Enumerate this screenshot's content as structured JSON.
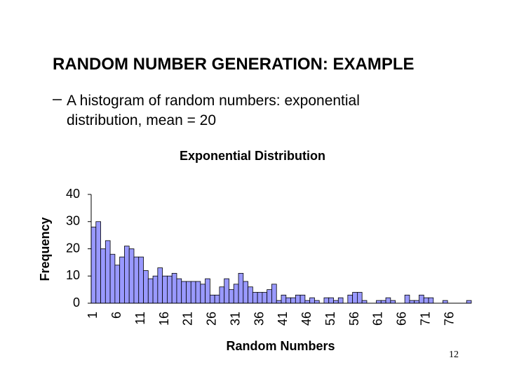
{
  "slide": {
    "title": "RANDOM NUMBER GENERATION: EXAMPLE",
    "bullet": "A histogram of random numbers: exponential distribution, mean = 20",
    "page_number": "12"
  },
  "chart_data": {
    "type": "bar",
    "title": "Exponential Distribution",
    "x_label": "Random Numbers",
    "y_label": "Frequency",
    "categories": [
      "1",
      null,
      null,
      null,
      null,
      "6",
      null,
      null,
      null,
      null,
      "11",
      null,
      null,
      null,
      null,
      "16",
      null,
      null,
      null,
      null,
      "21",
      null,
      null,
      null,
      null,
      "26",
      null,
      null,
      null,
      null,
      "31",
      null,
      null,
      null,
      null,
      "36",
      null,
      null,
      null,
      null,
      "41",
      null,
      null,
      null,
      null,
      "46",
      null,
      null,
      null,
      null,
      "51",
      null,
      null,
      null,
      null,
      "56",
      null,
      null,
      null,
      null,
      "61",
      null,
      null,
      null,
      null,
      "66",
      null,
      null,
      null,
      null,
      "71",
      null,
      null,
      null,
      null,
      "76",
      null,
      null,
      null,
      null
    ],
    "values": [
      28,
      30,
      20,
      23,
      18,
      14,
      17,
      21,
      20,
      17,
      17,
      12,
      9,
      10,
      13,
      10,
      10,
      11,
      9,
      8,
      8,
      8,
      8,
      7,
      9,
      3,
      3,
      6,
      9,
      5,
      7,
      11,
      8,
      6,
      4,
      4,
      4,
      5,
      7,
      1,
      3,
      2,
      2,
      3,
      3,
      1,
      2,
      1,
      0,
      2,
      2,
      1,
      2,
      0,
      3,
      4,
      4,
      1,
      0,
      0,
      1,
      1,
      2,
      1,
      0,
      0,
      3,
      1,
      1,
      3,
      2,
      2,
      0,
      0,
      1,
      0,
      0,
      0,
      0,
      1
    ],
    "color": "#9999ff",
    "ylim": [
      0,
      40
    ],
    "yticks": [
      0,
      10,
      20,
      30,
      40
    ],
    "grid": false
  }
}
